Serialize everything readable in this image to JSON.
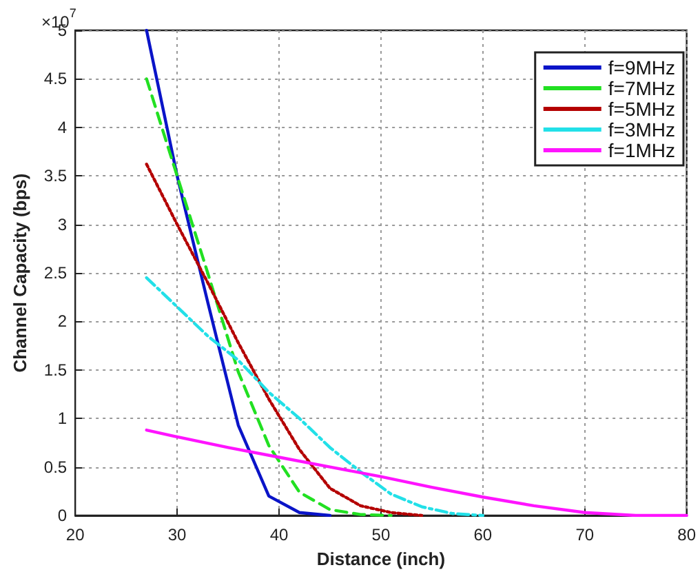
{
  "chart_data": {
    "type": "line",
    "xlabel": "Distance (inch)",
    "ylabel": "Channel Capacity (bps)",
    "annotations": [
      "×10$^{7}$"
    ],
    "xlim": [
      20,
      80
    ],
    "xticks": [
      20,
      30,
      40,
      50,
      60,
      70,
      80
    ],
    "ylim": [
      0,
      5
    ],
    "yticks": [
      0,
      0.5,
      1,
      1.5,
      2,
      2.5,
      3,
      3.5,
      4,
      4.5,
      5
    ],
    "grid": true,
    "legend": "top right",
    "marker": "none",
    "series": [
      {
        "name": "f=9MHz",
        "color": "#0a14c8",
        "line_style": "solid",
        "x": [
          27,
          30,
          33,
          36,
          39,
          42,
          45
        ],
        "values": [
          5.0,
          3.5,
          2.2,
          0.93,
          0.2,
          0.03,
          0
        ]
      },
      {
        "name": "f=7MHz",
        "color": "#22e022",
        "line_style": "dashed",
        "x": [
          27,
          30,
          33,
          36,
          39,
          42,
          45,
          48,
          51
        ],
        "values": [
          4.5,
          3.5,
          2.5,
          1.48,
          0.72,
          0.24,
          0.06,
          0.01,
          0
        ]
      },
      {
        "name": "f=5MHz",
        "color": "#b40000",
        "line_style": "dotted",
        "x": [
          27,
          30,
          33,
          36,
          39,
          42,
          45,
          48,
          51,
          54
        ],
        "values": [
          3.62,
          3.0,
          2.4,
          1.78,
          1.2,
          0.68,
          0.28,
          0.1,
          0.03,
          0
        ]
      },
      {
        "name": "f=3MHz",
        "color": "#22e0e8",
        "line_style": "dashdot",
        "x": [
          27,
          30,
          33,
          36,
          39,
          42,
          45,
          48,
          51,
          54,
          57,
          60
        ],
        "values": [
          2.45,
          2.15,
          1.85,
          1.6,
          1.27,
          1.0,
          0.7,
          0.45,
          0.22,
          0.09,
          0.02,
          0
        ]
      },
      {
        "name": "f=1MHz",
        "color": "#ff14ff",
        "line_style": "solid",
        "x": [
          27,
          30,
          35,
          40,
          45,
          50,
          55,
          60,
          65,
          70,
          75,
          80
        ],
        "values": [
          0.88,
          0.81,
          0.7,
          0.6,
          0.5,
          0.4,
          0.29,
          0.19,
          0.1,
          0.03,
          0,
          0
        ]
      }
    ]
  }
}
